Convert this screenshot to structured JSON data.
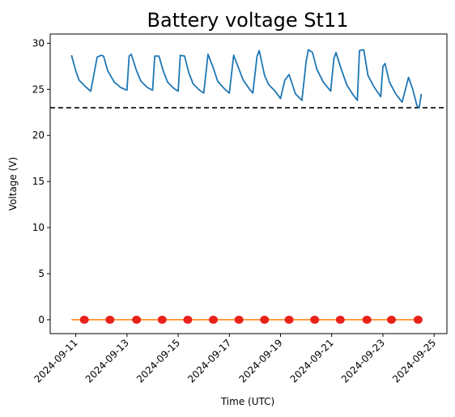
{
  "chart_data": {
    "type": "line",
    "title": "Battery voltage St11",
    "xlabel": "Time (UTC)",
    "ylabel": "Voltage (V)",
    "x_type": "date",
    "xlim": [
      "2024-09-10",
      "2024-09-25T12:00"
    ],
    "ylim": [
      -1.5,
      31
    ],
    "x_ticks": [
      "2024-09-11",
      "2024-09-13",
      "2024-09-15",
      "2024-09-17",
      "2024-09-19",
      "2024-09-21",
      "2024-09-23",
      "2024-09-25"
    ],
    "y_ticks": [
      0,
      5,
      10,
      15,
      20,
      25,
      30
    ],
    "grid": false,
    "threshold": {
      "value": 23,
      "style": "dashed",
      "color": "#000000"
    },
    "series": [
      {
        "color": "#1f77b4",
        "x": [
          "2024-09-10T20:00",
          "2024-09-11T00:00",
          "2024-09-11T03:00",
          "2024-09-11T08:00",
          "2024-09-11T12:00",
          "2024-09-11T14:00",
          "2024-09-11T20:00",
          "2024-09-12T00:00",
          "2024-09-12T02:00",
          "2024-09-12T06:00",
          "2024-09-12T12:00",
          "2024-09-12T18:00",
          "2024-09-13T00:00",
          "2024-09-13T02:00",
          "2024-09-13T04:00",
          "2024-09-13T09:00",
          "2024-09-13T13:00",
          "2024-09-13T19:00",
          "2024-09-14T00:00",
          "2024-09-14T02:00",
          "2024-09-14T06:00",
          "2024-09-14T10:00",
          "2024-09-14T14:00",
          "2024-09-14T20:00",
          "2024-09-15T00:00",
          "2024-09-15T02:00",
          "2024-09-15T06:00",
          "2024-09-15T10:00",
          "2024-09-15T14:00",
          "2024-09-15T20:00",
          "2024-09-16T00:00",
          "2024-09-16T04:00",
          "2024-09-16T09:00",
          "2024-09-16T13:00",
          "2024-09-16T19:00",
          "2024-09-17T00:00",
          "2024-09-17T04:00",
          "2024-09-17T08:00",
          "2024-09-17T13:00",
          "2024-09-17T19:00",
          "2024-09-17T22:00",
          "2024-09-18T02:00",
          "2024-09-18T04:00",
          "2024-09-18T09:00",
          "2024-09-18T13:00",
          "2024-09-18T19:00",
          "2024-09-19T00:00",
          "2024-09-19T04:00",
          "2024-09-19T08:00",
          "2024-09-19T14:00",
          "2024-09-19T20:00",
          "2024-09-20T00:00",
          "2024-09-20T02:00",
          "2024-09-20T06:00",
          "2024-09-20T10:00",
          "2024-09-20T16:00",
          "2024-09-20T23:00",
          "2024-09-21T02:00",
          "2024-09-21T04:00",
          "2024-09-21T08:00",
          "2024-09-21T14:00",
          "2024-09-21T20:00",
          "2024-09-22T00:00",
          "2024-09-22T02:00",
          "2024-09-22T06:00",
          "2024-09-22T10:00",
          "2024-09-22T16:00",
          "2024-09-22T22:00",
          "2024-09-23T00:00",
          "2024-09-23T02:00",
          "2024-09-23T06:00",
          "2024-09-23T12:00",
          "2024-09-23T18:00",
          "2024-09-24T00:00",
          "2024-09-24T04:00",
          "2024-09-24T08:00",
          "2024-09-24T10:00",
          "2024-09-24T12:00"
        ],
        "y": [
          28.7,
          27.0,
          26.0,
          25.4,
          25.0,
          24.8,
          28.5,
          28.7,
          28.6,
          27.0,
          25.8,
          25.2,
          24.9,
          28.6,
          28.8,
          27.0,
          25.9,
          25.2,
          24.9,
          28.6,
          28.6,
          27.0,
          25.8,
          25.1,
          24.8,
          28.7,
          28.6,
          26.8,
          25.6,
          24.9,
          24.6,
          28.8,
          27.3,
          25.9,
          25.1,
          24.6,
          28.7,
          27.5,
          26.0,
          25.0,
          24.6,
          28.6,
          29.2,
          26.5,
          25.5,
          24.8,
          24.0,
          26.0,
          26.6,
          24.5,
          23.8,
          28.0,
          29.3,
          29.0,
          27.2,
          25.8,
          24.8,
          28.3,
          29.0,
          27.5,
          25.5,
          24.4,
          23.8,
          29.2,
          29.3,
          26.5,
          25.2,
          24.2,
          27.5,
          27.8,
          25.8,
          24.5,
          23.6,
          26.3,
          25.0,
          23.2,
          23.0,
          24.5
        ]
      },
      {
        "color": "#ff7f0e",
        "x": [
          "2024-09-10T20:00",
          "2024-09-24T12:00"
        ],
        "y": [
          0,
          0
        ]
      }
    ],
    "markers": {
      "color": "#e8211b",
      "y": 0,
      "x": [
        "2024-09-11T08:00",
        "2024-09-12T08:00",
        "2024-09-13T09:00",
        "2024-09-14T09:00",
        "2024-09-15T09:00",
        "2024-09-16T09:00",
        "2024-09-17T09:00",
        "2024-09-18T09:00",
        "2024-09-19T08:00",
        "2024-09-20T08:00",
        "2024-09-21T08:00",
        "2024-09-22T09:00",
        "2024-09-23T08:00",
        "2024-09-24T09:00"
      ]
    }
  }
}
